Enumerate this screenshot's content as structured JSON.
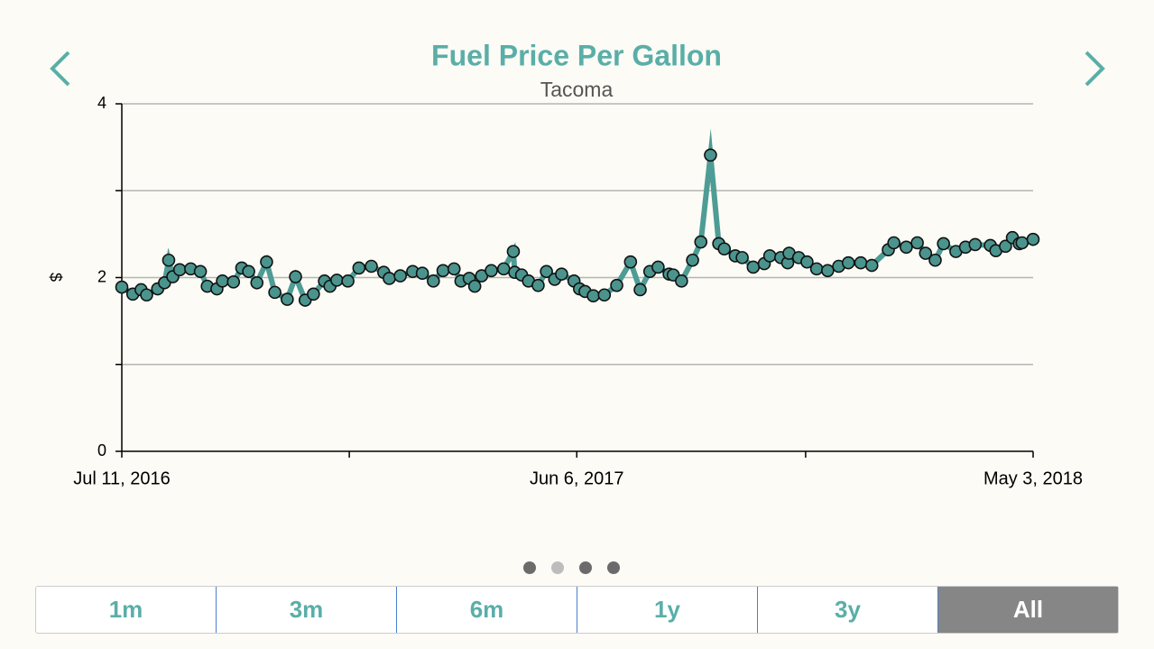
{
  "chart_data": {
    "type": "line",
    "title": "Fuel Price Per Gallon",
    "subtitle": "Tacoma",
    "ylabel": "$",
    "color": "#4e9c95",
    "marker_color": "#4a948d",
    "grid": true,
    "xlim": [
      "2016-07-11",
      "2018-05-03"
    ],
    "xticks": [
      {
        "value": "2016-07-11",
        "label": "Jul 11, 2016"
      },
      {
        "value": "2016-12-23",
        "label": null
      },
      {
        "value": "2017-06-06",
        "label": "Jun 6, 2017"
      },
      {
        "value": "2017-11-19",
        "label": null
      },
      {
        "value": "2018-05-03",
        "label": "May 3, 2018"
      }
    ],
    "ylim": [
      0,
      4
    ],
    "yticks": [
      0,
      {
        "value": 1,
        "label": null
      },
      2,
      {
        "value": 3,
        "label": null
      },
      4
    ],
    "x": [
      "2016-07-11",
      "2016-07-19",
      "2016-07-25",
      "2016-07-29",
      "2016-08-06",
      "2016-08-11",
      "2016-08-14",
      "2016-08-17",
      "2016-08-22",
      "2016-08-30",
      "2016-09-06",
      "2016-09-11",
      "2016-09-18",
      "2016-09-22",
      "2016-09-30",
      "2016-10-06",
      "2016-10-11",
      "2016-10-17",
      "2016-10-24",
      "2016-10-30",
      "2016-11-08",
      "2016-11-14",
      "2016-11-21",
      "2016-11-27",
      "2016-12-05",
      "2016-12-09",
      "2016-12-14",
      "2016-12-22",
      "2016-12-30",
      "2017-01-08",
      "2017-01-17",
      "2017-01-21",
      "2017-01-29",
      "2017-02-07",
      "2017-02-14",
      "2017-02-22",
      "2017-03-01",
      "2017-03-09",
      "2017-03-14",
      "2017-03-20",
      "2017-03-24",
      "2017-03-29",
      "2017-04-05",
      "2017-04-14",
      "2017-04-21",
      "2017-04-22",
      "2017-04-27",
      "2017-05-02",
      "2017-05-09",
      "2017-05-15",
      "2017-05-21",
      "2017-05-26",
      "2017-06-04",
      "2017-06-08",
      "2017-06-12",
      "2017-06-18",
      "2017-06-26",
      "2017-07-05",
      "2017-07-15",
      "2017-07-22",
      "2017-07-29",
      "2017-08-04",
      "2017-08-12",
      "2017-08-15",
      "2017-08-21",
      "2017-08-29",
      "2017-09-04",
      "2017-09-11",
      "2017-09-17",
      "2017-09-21",
      "2017-09-29",
      "2017-10-04",
      "2017-10-12",
      "2017-10-20",
      "2017-10-24",
      "2017-11-01",
      "2017-11-06",
      "2017-11-07",
      "2017-11-14",
      "2017-11-20",
      "2017-11-27",
      "2017-12-05",
      "2017-12-13",
      "2017-12-20",
      "2017-12-29",
      "2018-01-06",
      "2018-01-18",
      "2018-01-22",
      "2018-01-31",
      "2018-02-08",
      "2018-02-14",
      "2018-02-21",
      "2018-02-27",
      "2018-03-08",
      "2018-03-15",
      "2018-03-22",
      "2018-04-02",
      "2018-04-06",
      "2018-04-13",
      "2018-04-18",
      "2018-04-23",
      "2018-04-25",
      "2018-05-03"
    ],
    "values": [
      1.89,
      1.81,
      1.86,
      1.8,
      1.87,
      1.94,
      2.2,
      2.01,
      2.09,
      2.1,
      2.07,
      1.9,
      1.87,
      1.96,
      1.95,
      2.11,
      2.07,
      1.94,
      2.18,
      1.83,
      1.75,
      2.01,
      1.74,
      1.81,
      1.96,
      1.9,
      1.97,
      1.96,
      2.11,
      2.13,
      2.06,
      1.99,
      2.02,
      2.07,
      2.05,
      1.96,
      2.08,
      2.1,
      1.96,
      1.99,
      1.9,
      2.02,
      2.08,
      2.1,
      2.3,
      2.06,
      2.03,
      1.96,
      1.91,
      2.07,
      1.98,
      2.04,
      1.96,
      1.87,
      1.84,
      1.79,
      1.8,
      1.91,
      2.18,
      1.86,
      2.07,
      2.12,
      2.04,
      2.03,
      1.96,
      2.2,
      2.41,
      3.41,
      2.39,
      2.33,
      2.25,
      2.23,
      2.12,
      2.16,
      2.25,
      2.23,
      2.17,
      2.28,
      2.23,
      2.18,
      2.1,
      2.08,
      2.13,
      2.17,
      2.17,
      2.14,
      2.32,
      2.4,
      2.35,
      2.4,
      2.28,
      2.2,
      2.39,
      2.3,
      2.35,
      2.38,
      2.37,
      2.31,
      2.36,
      2.46,
      2.39,
      2.4,
      2.44
    ]
  },
  "range_buttons": [
    "1m",
    "3m",
    "6m",
    "1y",
    "3y",
    "All"
  ],
  "selected_range": "All"
}
